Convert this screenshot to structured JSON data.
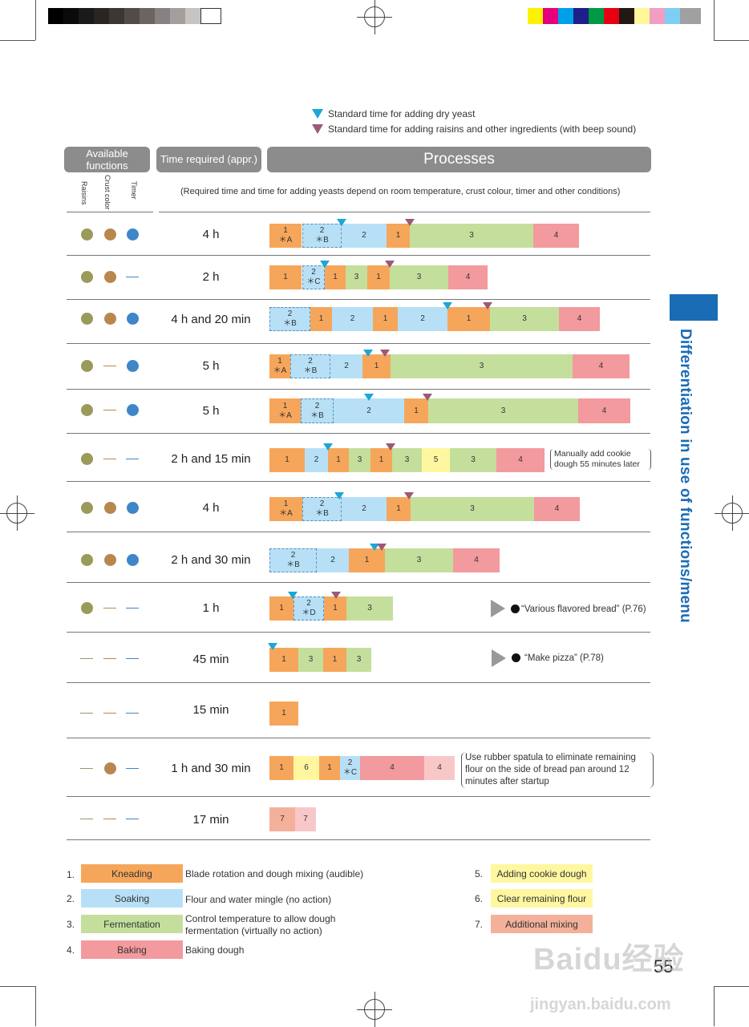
{
  "colors": {
    "kneading": "#f6a65b",
    "soaking": "#b7e0f7",
    "fermentation": "#c4df9c",
    "baking": "#f29a9e",
    "baking_light": "#f8c8c9",
    "cookie": "#fff7a0",
    "flour": "#fff7a0",
    "additional": "#f4b09a",
    "raisins_dot": "#9a9a5a",
    "crust_dot": "#b8874e",
    "timer_dot": "#3f86c8",
    "yeast_marker": "#1aa7d8",
    "raisin_marker": "#9a5a78",
    "header_gray": "#8c8c8c",
    "tab_blue": "#1a6cb5"
  },
  "legend_top": {
    "yeast": "Standard time for adding dry yeast",
    "raisins": "Standard time for adding raisins and other ingredients (with beep sound)"
  },
  "headers": {
    "functions": "Available functions",
    "time": "Time required (appr.)",
    "processes": "Processes",
    "sub_raisins": "Raisins",
    "sub_crust": "Crust color",
    "sub_timer": "Timer",
    "note": "(Required time and time for adding yeasts depend on room temperature, crust colour, timer and other conditions)"
  },
  "rows": [
    {
      "time": "4 h"
    },
    {
      "time": "2 h"
    },
    {
      "time": "4 h and 20 min"
    },
    {
      "time": "5 h"
    },
    {
      "time": "5 h"
    },
    {
      "time": "2 h and 15 min"
    },
    {
      "time": "4 h"
    },
    {
      "time": "2 h and 30 min"
    },
    {
      "time": "1 h"
    },
    {
      "time": "45 min"
    },
    {
      "time": "15 min"
    },
    {
      "time": "1 h and 30 min"
    },
    {
      "time": "17 min"
    }
  ],
  "notes": {
    "cookie": "Manually add cookie dough 55 minutes later",
    "flavored": "“Various flavored bread” (P.76)",
    "pizza": "“Make pizza” (P.78)",
    "spatula": "Use rubber spatula to eliminate remaining flour on the side of bread pan around 12 minutes after startup"
  },
  "legend": [
    {
      "num": "1.",
      "label": "Kneading",
      "desc": "Blade rotation and dough mixing (audible)"
    },
    {
      "num": "2.",
      "label": "Soaking",
      "desc": "Flour and water mingle (no action)"
    },
    {
      "num": "3.",
      "label": "Fermentation",
      "desc": "Control temperature to allow dough fermentation (virtually no action)"
    },
    {
      "num": "4.",
      "label": "Baking",
      "desc": "Baking dough"
    },
    {
      "num": "5.",
      "label": "Adding cookie dough"
    },
    {
      "num": "6.",
      "label": "Clear remaining flour"
    },
    {
      "num": "7.",
      "label": "Additional mixing"
    }
  ],
  "side_title": "Differentiation in use of functions/menu",
  "page_number": "55",
  "watermark": {
    "brand": "Baidu经验",
    "url": "jingyan.baidu.com"
  }
}
